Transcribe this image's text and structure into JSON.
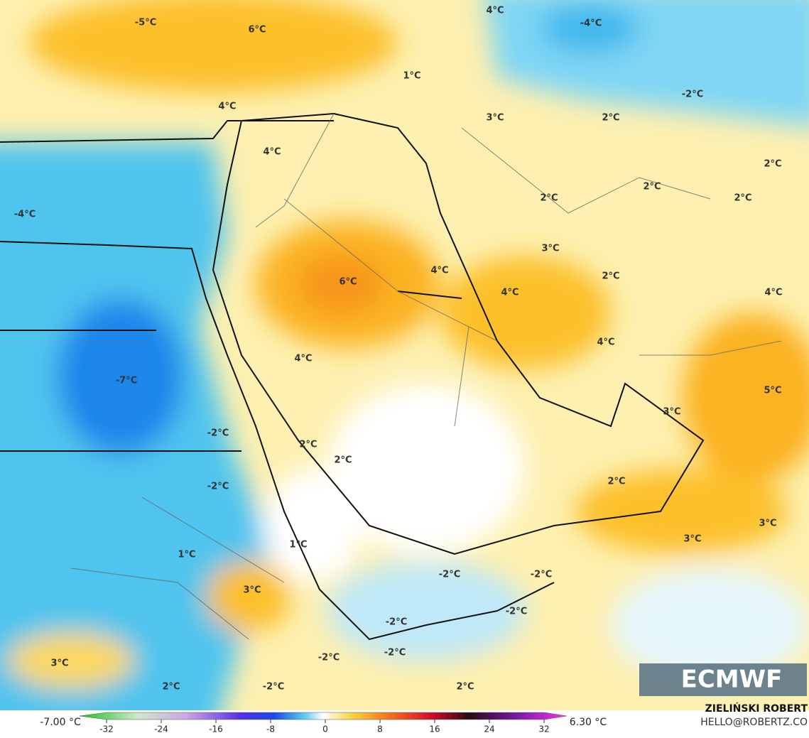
{
  "map": {
    "labels": [
      "-5°C",
      "6°C",
      "4°C",
      "-4°C",
      "1°C",
      "4°C",
      "3°C",
      "-2°C",
      "2°C",
      "4°C",
      "2°C",
      "2°C",
      "2°C",
      "2°C",
      "-4°C",
      "3°C",
      "2°C",
      "4°C",
      "6°C",
      "4°C",
      "4°C",
      "4°C",
      "4°C",
      "-7°C",
      "5°C",
      "3°C",
      "-2°C",
      "2°C",
      "2°C",
      "2°C",
      "-2°C",
      "3°C",
      "3°C",
      "1°C",
      "1°C",
      "-2°C",
      "-2°C",
      "3°C",
      "-2°C",
      "-2°C",
      "-2°C",
      "-2°C",
      "3°C",
      "2°C",
      "-2°C",
      "2°C"
    ]
  },
  "logo": "ECMWF",
  "footer": {
    "min_label": "-7.00 °C",
    "max_label": "6.30 °C",
    "author": "ZIELIŃSKI ROBERT",
    "contact": "HELLO@ROBERTZ.CO"
  },
  "colorbar": {
    "ticks": [
      -32,
      -24,
      -16,
      -8,
      0,
      8,
      16,
      24,
      32
    ]
  }
}
